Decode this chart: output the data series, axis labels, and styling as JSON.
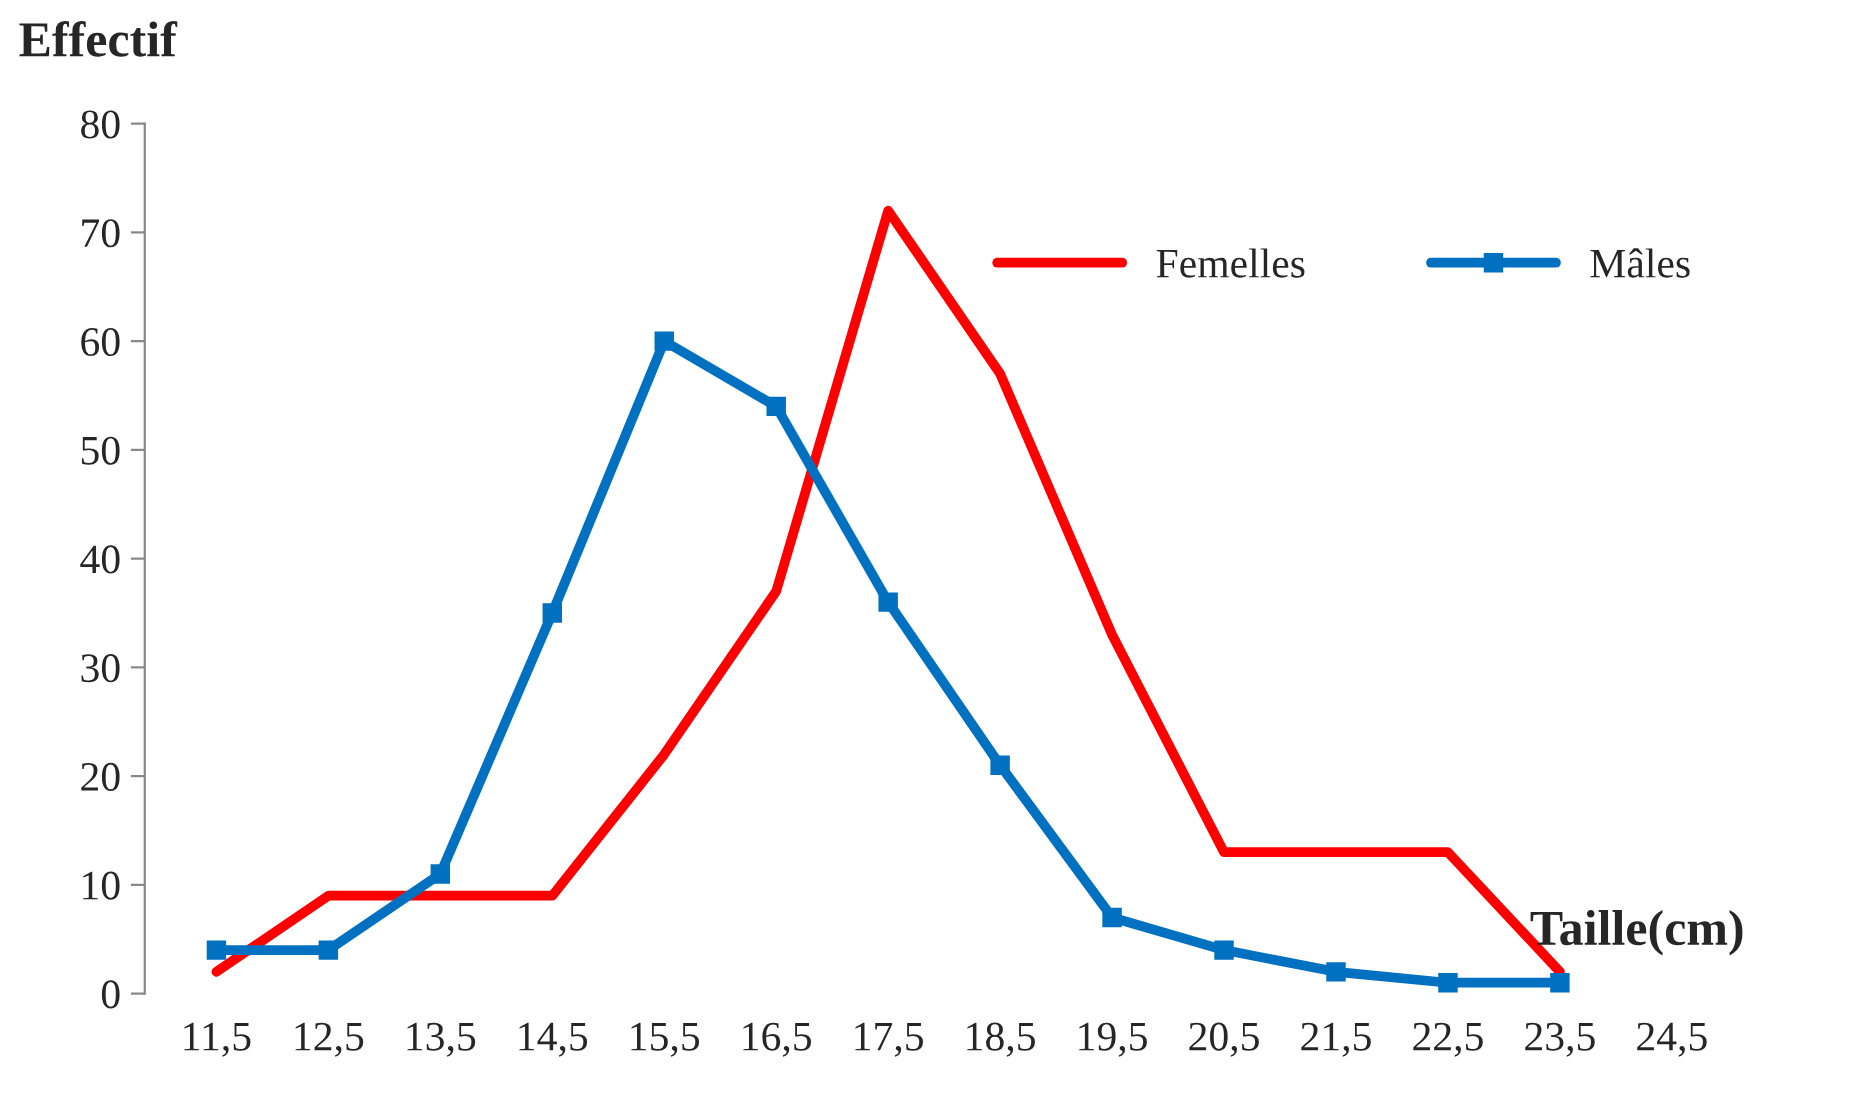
{
  "chart_data": {
    "type": "line",
    "xlabel": "Taille(cm)",
    "ylabel": "Effectif",
    "categories": [
      "11,5",
      "12,5",
      "13,5",
      "14,5",
      "15,5",
      "16,5",
      "17,5",
      "18,5",
      "19,5",
      "20,5",
      "21,5",
      "22,5",
      "23,5",
      "24,5"
    ],
    "series": [
      {
        "name": "Femelles",
        "color": "#ff0000",
        "marker": "none",
        "values": [
          2,
          9,
          9,
          9,
          22,
          37,
          72,
          57,
          33,
          13,
          13,
          13,
          2,
          null
        ]
      },
      {
        "name": "Mâles",
        "color": "#0070c0",
        "marker": "square",
        "values": [
          4,
          4,
          11,
          35,
          60,
          54,
          36,
          21,
          7,
          4,
          2,
          1,
          1,
          null
        ]
      }
    ],
    "ylim": [
      0,
      80
    ],
    "yticks": [
      0,
      10,
      20,
      30,
      40,
      50,
      60,
      70,
      80
    ],
    "grid": false,
    "legend": "top right"
  }
}
